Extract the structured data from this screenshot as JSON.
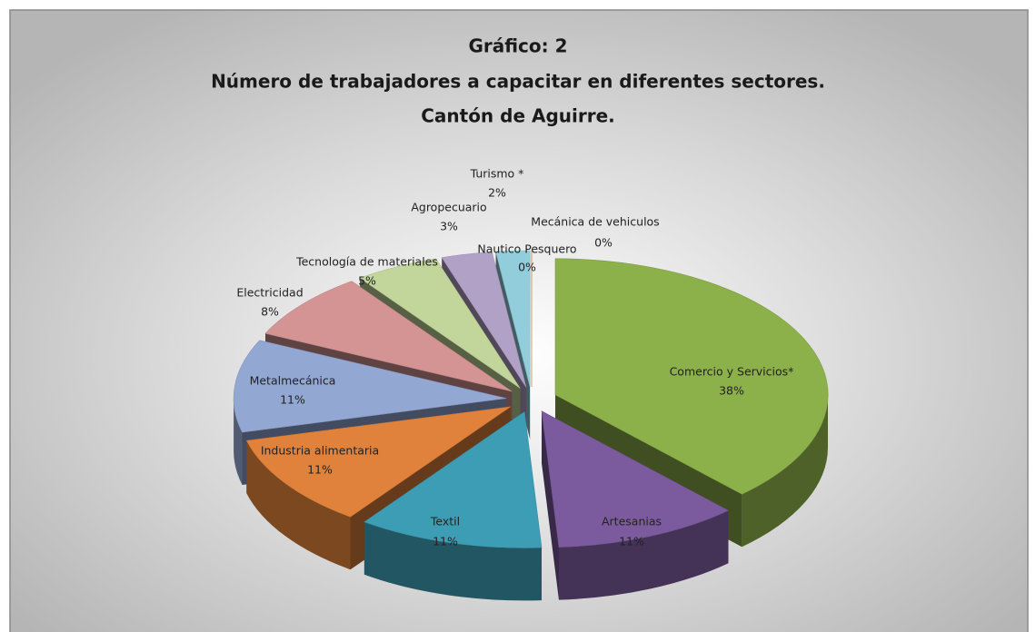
{
  "chart_data": {
    "type": "pie3d",
    "title": [
      "Gráfico: 2",
      "Número de trabajadores a capacitar en diferentes sectores.",
      "Cantón de Aguirre."
    ],
    "categories": [
      "Comercio y Servicios*",
      "Artesanias",
      "Textil",
      "Industria alimentaria",
      "Metalmecánica",
      "Electricidad",
      "Tecnología de materiales",
      "Agropecuario",
      "Turismo *",
      "Nautico Pesquero",
      "Mecánica de vehiculos"
    ],
    "values": [
      38,
      11,
      11,
      11,
      11,
      8,
      5,
      3,
      2,
      0,
      0
    ],
    "value_labels": [
      "38%",
      "11%",
      "11%",
      "11%",
      "11%",
      "8%",
      "5%",
      "3%",
      "2%",
      "0%",
      "0%"
    ],
    "colors": [
      "#8cb04a",
      "#7b5b9e",
      "#3d9db4",
      "#e0823b",
      "#93a7d3",
      "#d39493",
      "#c2d59a",
      "#b2a1c6",
      "#92cddc",
      "#4bacc6",
      "#f79646"
    ]
  }
}
